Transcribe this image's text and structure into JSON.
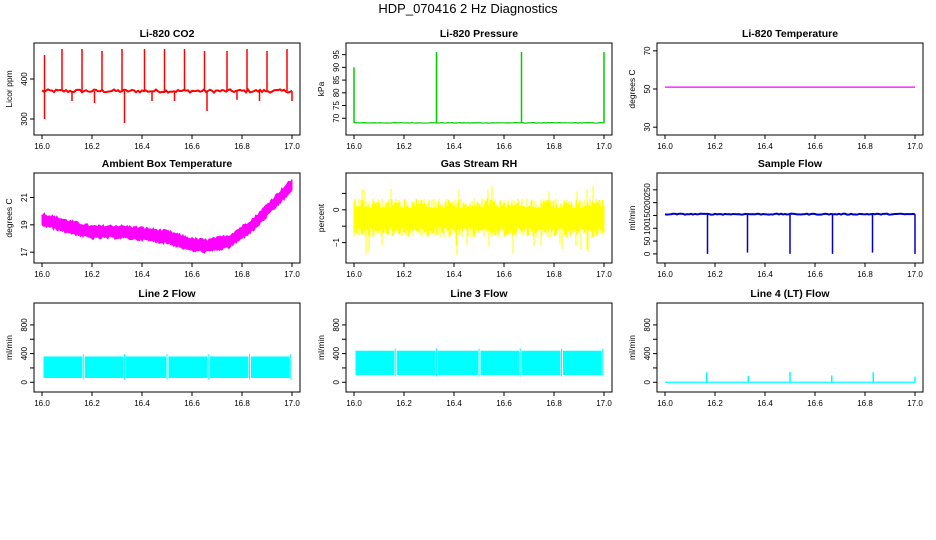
{
  "page": {
    "title": "HDP_070416  2 Hz Diagnostics"
  },
  "chart_data": [
    {
      "id": "co2",
      "type": "line",
      "title": "Li-820 CO2",
      "ylabel": "Licor ppm",
      "color": "#ff0000",
      "xlim": [
        16.0,
        17.0
      ],
      "ylim": [
        270,
        480
      ],
      "xticks": [
        "16.0",
        "16.2",
        "16.4",
        "16.6",
        "16.8",
        "17.0"
      ],
      "yticks": [
        300,
        400
      ],
      "baseline": 370,
      "noise": 4,
      "spikes_up": [
        [
          16.01,
          460
        ],
        [
          16.08,
          475
        ],
        [
          16.16,
          475
        ],
        [
          16.24,
          470
        ],
        [
          16.32,
          475
        ],
        [
          16.41,
          475
        ],
        [
          16.49,
          475
        ],
        [
          16.57,
          475
        ],
        [
          16.65,
          470
        ],
        [
          16.74,
          470
        ],
        [
          16.82,
          475
        ],
        [
          16.9,
          470
        ],
        [
          16.98,
          475
        ]
      ],
      "spikes_down": [
        [
          16.01,
          300
        ],
        [
          16.12,
          345
        ],
        [
          16.21,
          340
        ],
        [
          16.33,
          290
        ],
        [
          16.44,
          345
        ],
        [
          16.53,
          345
        ],
        [
          16.66,
          320
        ],
        [
          16.78,
          348
        ],
        [
          16.87,
          345
        ],
        [
          17.0,
          345
        ]
      ]
    },
    {
      "id": "pressure",
      "type": "line",
      "title": "Li-820 Pressure",
      "ylabel": "kPa",
      "color": "#00cc00",
      "xlim": [
        16.0,
        17.0
      ],
      "ylim": [
        65,
        98
      ],
      "xticks": [
        "16.0",
        "16.2",
        "16.4",
        "16.6",
        "16.8",
        "17.0"
      ],
      "yticks": [
        70,
        75,
        80,
        85,
        90,
        95
      ],
      "baseline": 68.2,
      "noise": 0.1,
      "spikes_up": [
        [
          16.0,
          90
        ],
        [
          16.33,
          96
        ],
        [
          16.67,
          96
        ],
        [
          17.0,
          96
        ]
      ],
      "spikes_down": []
    },
    {
      "id": "licor-temp",
      "type": "line",
      "title": "Li-820 Temperature",
      "ylabel": "degrees C",
      "color": "#ff00ff",
      "xlim": [
        16.0,
        17.0
      ],
      "ylim": [
        28,
        72
      ],
      "xticks": [
        "16.0",
        "16.2",
        "16.4",
        "16.6",
        "16.8",
        "17.0"
      ],
      "yticks": [
        30,
        50,
        70
      ],
      "baseline": 51,
      "noise": 0,
      "spikes_up": [],
      "spikes_down": []
    },
    {
      "id": "box-temp",
      "type": "line",
      "title": "Ambient Box Temperature",
      "ylabel": "degrees C",
      "color": "#ff00ff",
      "xlim": [
        16.0,
        17.0
      ],
      "ylim": [
        16.5,
        22.5
      ],
      "xticks": [
        "16.0",
        "16.2",
        "16.4",
        "16.6",
        "16.8",
        "17.0"
      ],
      "yticks": [
        17,
        19,
        21
      ],
      "trend_x": [
        16.0,
        16.1,
        16.2,
        16.3,
        16.4,
        16.5,
        16.6,
        16.66,
        16.75,
        16.85,
        16.95,
        17.0
      ],
      "trend_y": [
        19.4,
        18.9,
        18.45,
        18.5,
        18.35,
        18.1,
        17.55,
        17.45,
        17.8,
        19.1,
        21.0,
        21.9
      ],
      "band": 0.45
    },
    {
      "id": "rh",
      "type": "line",
      "title": "Gas Stream RH",
      "ylabel": "percent",
      "color": "#ffff00",
      "xlim": [
        16.0,
        17.0
      ],
      "ylim": [
        -1.5,
        1.0
      ],
      "xticks": [
        "16.0",
        "16.2",
        "16.4",
        "16.6",
        "16.8",
        "17.0"
      ],
      "yticks": [
        -1.0,
        -0.5,
        0.0,
        0.5
      ],
      "yticklabels": [
        "−1",
        "",
        "0",
        ""
      ],
      "center": -0.25,
      "band": 0.5,
      "extremes": [
        -1.4,
        0.75
      ]
    },
    {
      "id": "sample-flow",
      "type": "line",
      "title": "Sample Flow",
      "ylabel": "ml/min",
      "color": "#0000cc",
      "xlim": [
        16.0,
        17.0
      ],
      "ylim": [
        -20,
        300
      ],
      "xticks": [
        "16.0",
        "16.2",
        "16.4",
        "16.6",
        "16.8",
        "17.0"
      ],
      "yticks": [
        0,
        50,
        100,
        150,
        200,
        250
      ],
      "baseline": 155,
      "noise": 2,
      "spikes_up": [],
      "spikes_down": [
        [
          16.17,
          0
        ],
        [
          16.33,
          5
        ],
        [
          16.5,
          0
        ],
        [
          16.67,
          0
        ],
        [
          16.83,
          5
        ],
        [
          17.0,
          0
        ]
      ]
    },
    {
      "id": "line2-flow",
      "type": "line",
      "title": "Line 2 Flow",
      "ylabel": "ml/min",
      "color": "#00ffff",
      "xlim": [
        16.0,
        17.0
      ],
      "ylim": [
        -80,
        1050
      ],
      "xticks": [
        "16.0",
        "16.2",
        "16.4",
        "16.6",
        "16.8",
        "17.0"
      ],
      "yticks": [
        0,
        200,
        400,
        600,
        800
      ],
      "yticklabels": [
        "0",
        "",
        "400",
        "",
        "800"
      ],
      "low": 60,
      "high": 360,
      "gaps": [
        16.165,
        16.33,
        16.5,
        16.665,
        16.83,
        16.995
      ]
    },
    {
      "id": "line3-flow",
      "type": "line",
      "title": "Line 3 Flow",
      "ylabel": "ml/min",
      "color": "#00ffff",
      "xlim": [
        16.0,
        17.0
      ],
      "ylim": [
        -80,
        1050
      ],
      "xticks": [
        "16.0",
        "16.2",
        "16.4",
        "16.6",
        "16.8",
        "17.0"
      ],
      "yticks": [
        0,
        200,
        400,
        600,
        800
      ],
      "yticklabels": [
        "0",
        "",
        "400",
        "",
        "800"
      ],
      "low": 100,
      "high": 440,
      "gaps": [
        16.165,
        16.33,
        16.5,
        16.665,
        16.83,
        16.995
      ]
    },
    {
      "id": "line4-flow",
      "type": "line",
      "title": "Line 4 (LT) Flow",
      "ylabel": "ml/min",
      "color": "#00ffff",
      "xlim": [
        16.0,
        17.0
      ],
      "ylim": [
        -80,
        1050
      ],
      "xticks": [
        "16.0",
        "16.2",
        "16.4",
        "16.6",
        "16.8",
        "17.0"
      ],
      "yticks": [
        0,
        200,
        400,
        600,
        800
      ],
      "yticklabels": [
        "0",
        "",
        "400",
        "",
        "800"
      ],
      "baseline": 0,
      "noise": 0,
      "spikes_up": [
        [
          16.167,
          140
        ],
        [
          16.333,
          90
        ],
        [
          16.5,
          145
        ],
        [
          16.667,
          95
        ],
        [
          16.833,
          140
        ],
        [
          17.0,
          80
        ]
      ],
      "spikes_down": []
    }
  ]
}
